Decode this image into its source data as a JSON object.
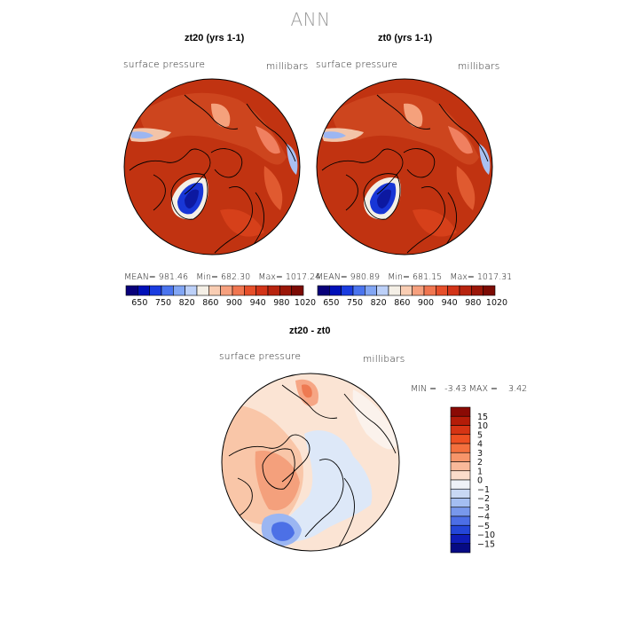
{
  "title": "ANN",
  "panels": [
    {
      "title": "zt20 (yrs 1-1)",
      "variable": "surface pressure",
      "units": "millibars",
      "stats": {
        "mean": "981.46",
        "min": "682.30",
        "max": "1017.24"
      }
    },
    {
      "title": "zt0 (yrs 1-1)",
      "variable": "surface pressure",
      "units": "millibars",
      "stats": {
        "mean": "980.89",
        "min": "681.15",
        "max": "1017.31"
      }
    }
  ],
  "colorbar_top": {
    "labels": [
      "650",
      "750",
      "820",
      "860",
      "900",
      "940",
      "980",
      "1020"
    ],
    "colors": [
      "#08007a",
      "#0010b8",
      "#1a3ce0",
      "#4a74ee",
      "#82a6f4",
      "#bcd0f8",
      "#f4efe6",
      "#f9cdb3",
      "#f6a07e",
      "#f07650",
      "#e64f2a",
      "#d23418",
      "#b7230e",
      "#9a1608",
      "#7c0b04"
    ]
  },
  "diff_panel": {
    "title": "zt20 - zt0",
    "variable": "surface pressure",
    "units": "millibars",
    "stats_text": "MIN =   -3.43 MAX =    3.42",
    "colorbar": {
      "labels": [
        "15",
        "10",
        "5",
        "4",
        "3",
        "2",
        "1",
        "0",
        "-1",
        "-2",
        "-3",
        "-4",
        "-5",
        "-10",
        "-15"
      ],
      "colors": [
        "#8a0a04",
        "#b41c08",
        "#d63414",
        "#ee5022",
        "#f4703e",
        "#f7956a",
        "#f9b99a",
        "#fbdcca",
        "#eef2f8",
        "#c8d8f4",
        "#a4bef2",
        "#7898ec",
        "#4c6ee6",
        "#2446d8",
        "#0f1cb8",
        "#060a84"
      ]
    }
  },
  "colors": {
    "land_high": "#b82a0a",
    "ocean_high": "#c33411",
    "greenland_low": "#1030c8"
  }
}
